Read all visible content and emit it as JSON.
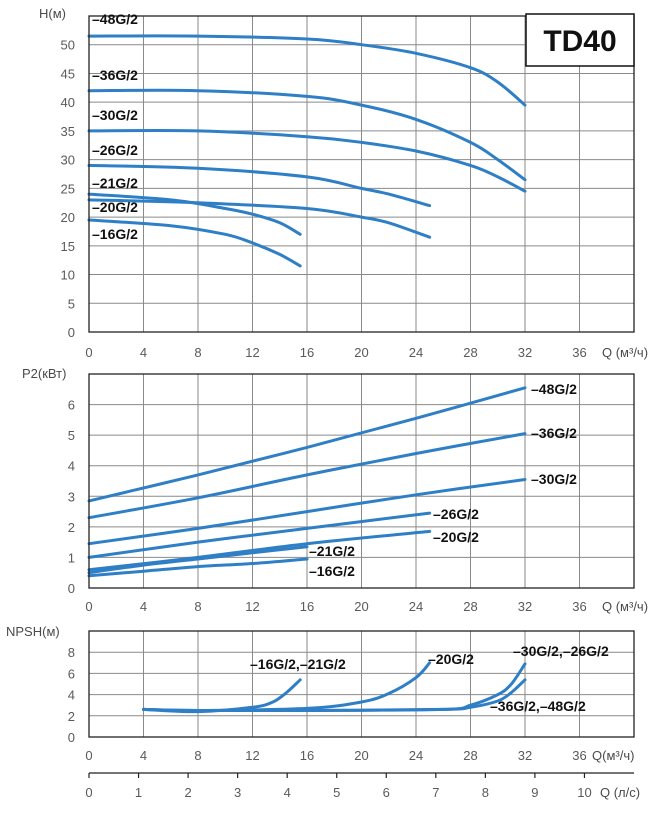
{
  "model_badge": "TD40",
  "colors": {
    "curve": "#2f7fc6",
    "grid": "#8a8a8a",
    "frame": "#222222",
    "text": "#111111"
  },
  "chart_data": [
    {
      "id": "head",
      "type": "line",
      "ylabel": "H(м)",
      "xlabel": "Q (м³/ч)",
      "xlim": [
        0,
        40
      ],
      "ylim": [
        0,
        55
      ],
      "xticks": [
        0,
        4,
        8,
        12,
        16,
        20,
        24,
        28,
        32,
        36
      ],
      "yticks": [
        0,
        5,
        10,
        15,
        20,
        25,
        30,
        35,
        40,
        45,
        50
      ],
      "grid": true,
      "series": [
        {
          "name": "–48G/2",
          "x": [
            0,
            8,
            16,
            20,
            24,
            28,
            30,
            32
          ],
          "y": [
            51.5,
            51.5,
            51,
            50,
            48.5,
            46,
            43.5,
            39.5
          ]
        },
        {
          "name": "–36G/2",
          "x": [
            0,
            8,
            16,
            20,
            24,
            28,
            30,
            32
          ],
          "y": [
            42,
            42,
            41,
            39.5,
            37,
            33,
            30,
            26.5
          ]
        },
        {
          "name": "–30G/2",
          "x": [
            0,
            8,
            16,
            20,
            24,
            28,
            30,
            32
          ],
          "y": [
            35,
            35,
            34,
            33,
            31.5,
            29,
            27,
            24.5
          ]
        },
        {
          "name": "–26G/2",
          "x": [
            0,
            8,
            16,
            20,
            22,
            25
          ],
          "y": [
            29,
            28.5,
            27,
            25,
            24,
            22
          ]
        },
        {
          "name": "–21G/2",
          "x": [
            0,
            6,
            10,
            12,
            14,
            15.5
          ],
          "y": [
            24,
            23,
            21.5,
            20.5,
            19,
            17
          ]
        },
        {
          "name": "–20G/2",
          "x": [
            0,
            8,
            16,
            20,
            22,
            25
          ],
          "y": [
            23,
            22.5,
            21.5,
            20,
            19,
            16.5
          ]
        },
        {
          "name": "–16G/2",
          "x": [
            0,
            6,
            10,
            12,
            14,
            15.5
          ],
          "y": [
            19.5,
            18.5,
            17,
            15.5,
            13.5,
            11.5
          ]
        }
      ]
    },
    {
      "id": "power",
      "type": "line",
      "ylabel": "P2(кВт)",
      "xlabel": "Q (м³/ч)",
      "xlim": [
        0,
        40
      ],
      "ylim": [
        0,
        7
      ],
      "xticks": [
        0,
        4,
        8,
        12,
        16,
        20,
        24,
        28,
        32,
        36
      ],
      "yticks": [
        0,
        1,
        2,
        3,
        4,
        5,
        6
      ],
      "grid": true,
      "series": [
        {
          "name": "–48G/2",
          "x": [
            0,
            8,
            16,
            24,
            32
          ],
          "y": [
            2.85,
            3.7,
            4.6,
            5.55,
            6.55
          ]
        },
        {
          "name": "–36G/2",
          "x": [
            0,
            8,
            16,
            24,
            32
          ],
          "y": [
            2.3,
            2.95,
            3.7,
            4.4,
            5.05
          ]
        },
        {
          "name": "–30G/2",
          "x": [
            0,
            8,
            16,
            24,
            32
          ],
          "y": [
            1.45,
            1.95,
            2.5,
            3.05,
            3.55
          ]
        },
        {
          "name": "–26G/2",
          "x": [
            0,
            8,
            16,
            25
          ],
          "y": [
            1.0,
            1.5,
            1.95,
            2.45
          ]
        },
        {
          "name": "–20G/2",
          "x": [
            0,
            8,
            16,
            25
          ],
          "y": [
            0.6,
            1.0,
            1.45,
            1.85
          ]
        },
        {
          "name": "–21G/2",
          "x": [
            0,
            4,
            8,
            12,
            16
          ],
          "y": [
            0.5,
            0.75,
            0.95,
            1.15,
            1.35
          ]
        },
        {
          "name": "–16G/2",
          "x": [
            0,
            4,
            8,
            12,
            16
          ],
          "y": [
            0.4,
            0.55,
            0.7,
            0.8,
            0.95
          ]
        }
      ]
    },
    {
      "id": "npsh",
      "type": "line",
      "ylabel": "NPSH(м)",
      "xlabel": "Q(м³/ч)",
      "xlim": [
        0,
        40
      ],
      "ylim": [
        0,
        10
      ],
      "xticks": [
        0,
        4,
        8,
        12,
        16,
        20,
        24,
        28,
        32,
        36
      ],
      "yticks": [
        0,
        2,
        4,
        6,
        8
      ],
      "grid": true,
      "series": [
        {
          "name": "–16G/2,–21G/2",
          "x": [
            4,
            8,
            12,
            13.5,
            14.5,
            15.5
          ],
          "y": [
            2.6,
            2.4,
            2.8,
            3.3,
            4.2,
            5.4
          ]
        },
        {
          "name": "–20G/2",
          "x": [
            4,
            8,
            16,
            20,
            22,
            24,
            25
          ],
          "y": [
            2.6,
            2.5,
            2.7,
            3.3,
            4.1,
            5.6,
            7.0
          ]
        },
        {
          "name": "–30G/2,–26G/2",
          "x": [
            4,
            8,
            16,
            26,
            28,
            30,
            31,
            32
          ],
          "y": [
            2.6,
            2.5,
            2.5,
            2.6,
            3.0,
            4.0,
            5.0,
            6.9
          ]
        },
        {
          "name": "–36G/2,–48G/2",
          "x": [
            4,
            8,
            16,
            26,
            28,
            30,
            31,
            32
          ],
          "y": [
            2.6,
            2.5,
            2.5,
            2.6,
            2.8,
            3.4,
            4.2,
            5.4
          ]
        }
      ]
    },
    {
      "id": "flow-ls",
      "type": "axis",
      "xlabel": "Q (л/с)",
      "xlim": [
        0,
        11
      ],
      "xticks": [
        0,
        1,
        2,
        3,
        4,
        5,
        6,
        7,
        8,
        9,
        10
      ]
    }
  ]
}
